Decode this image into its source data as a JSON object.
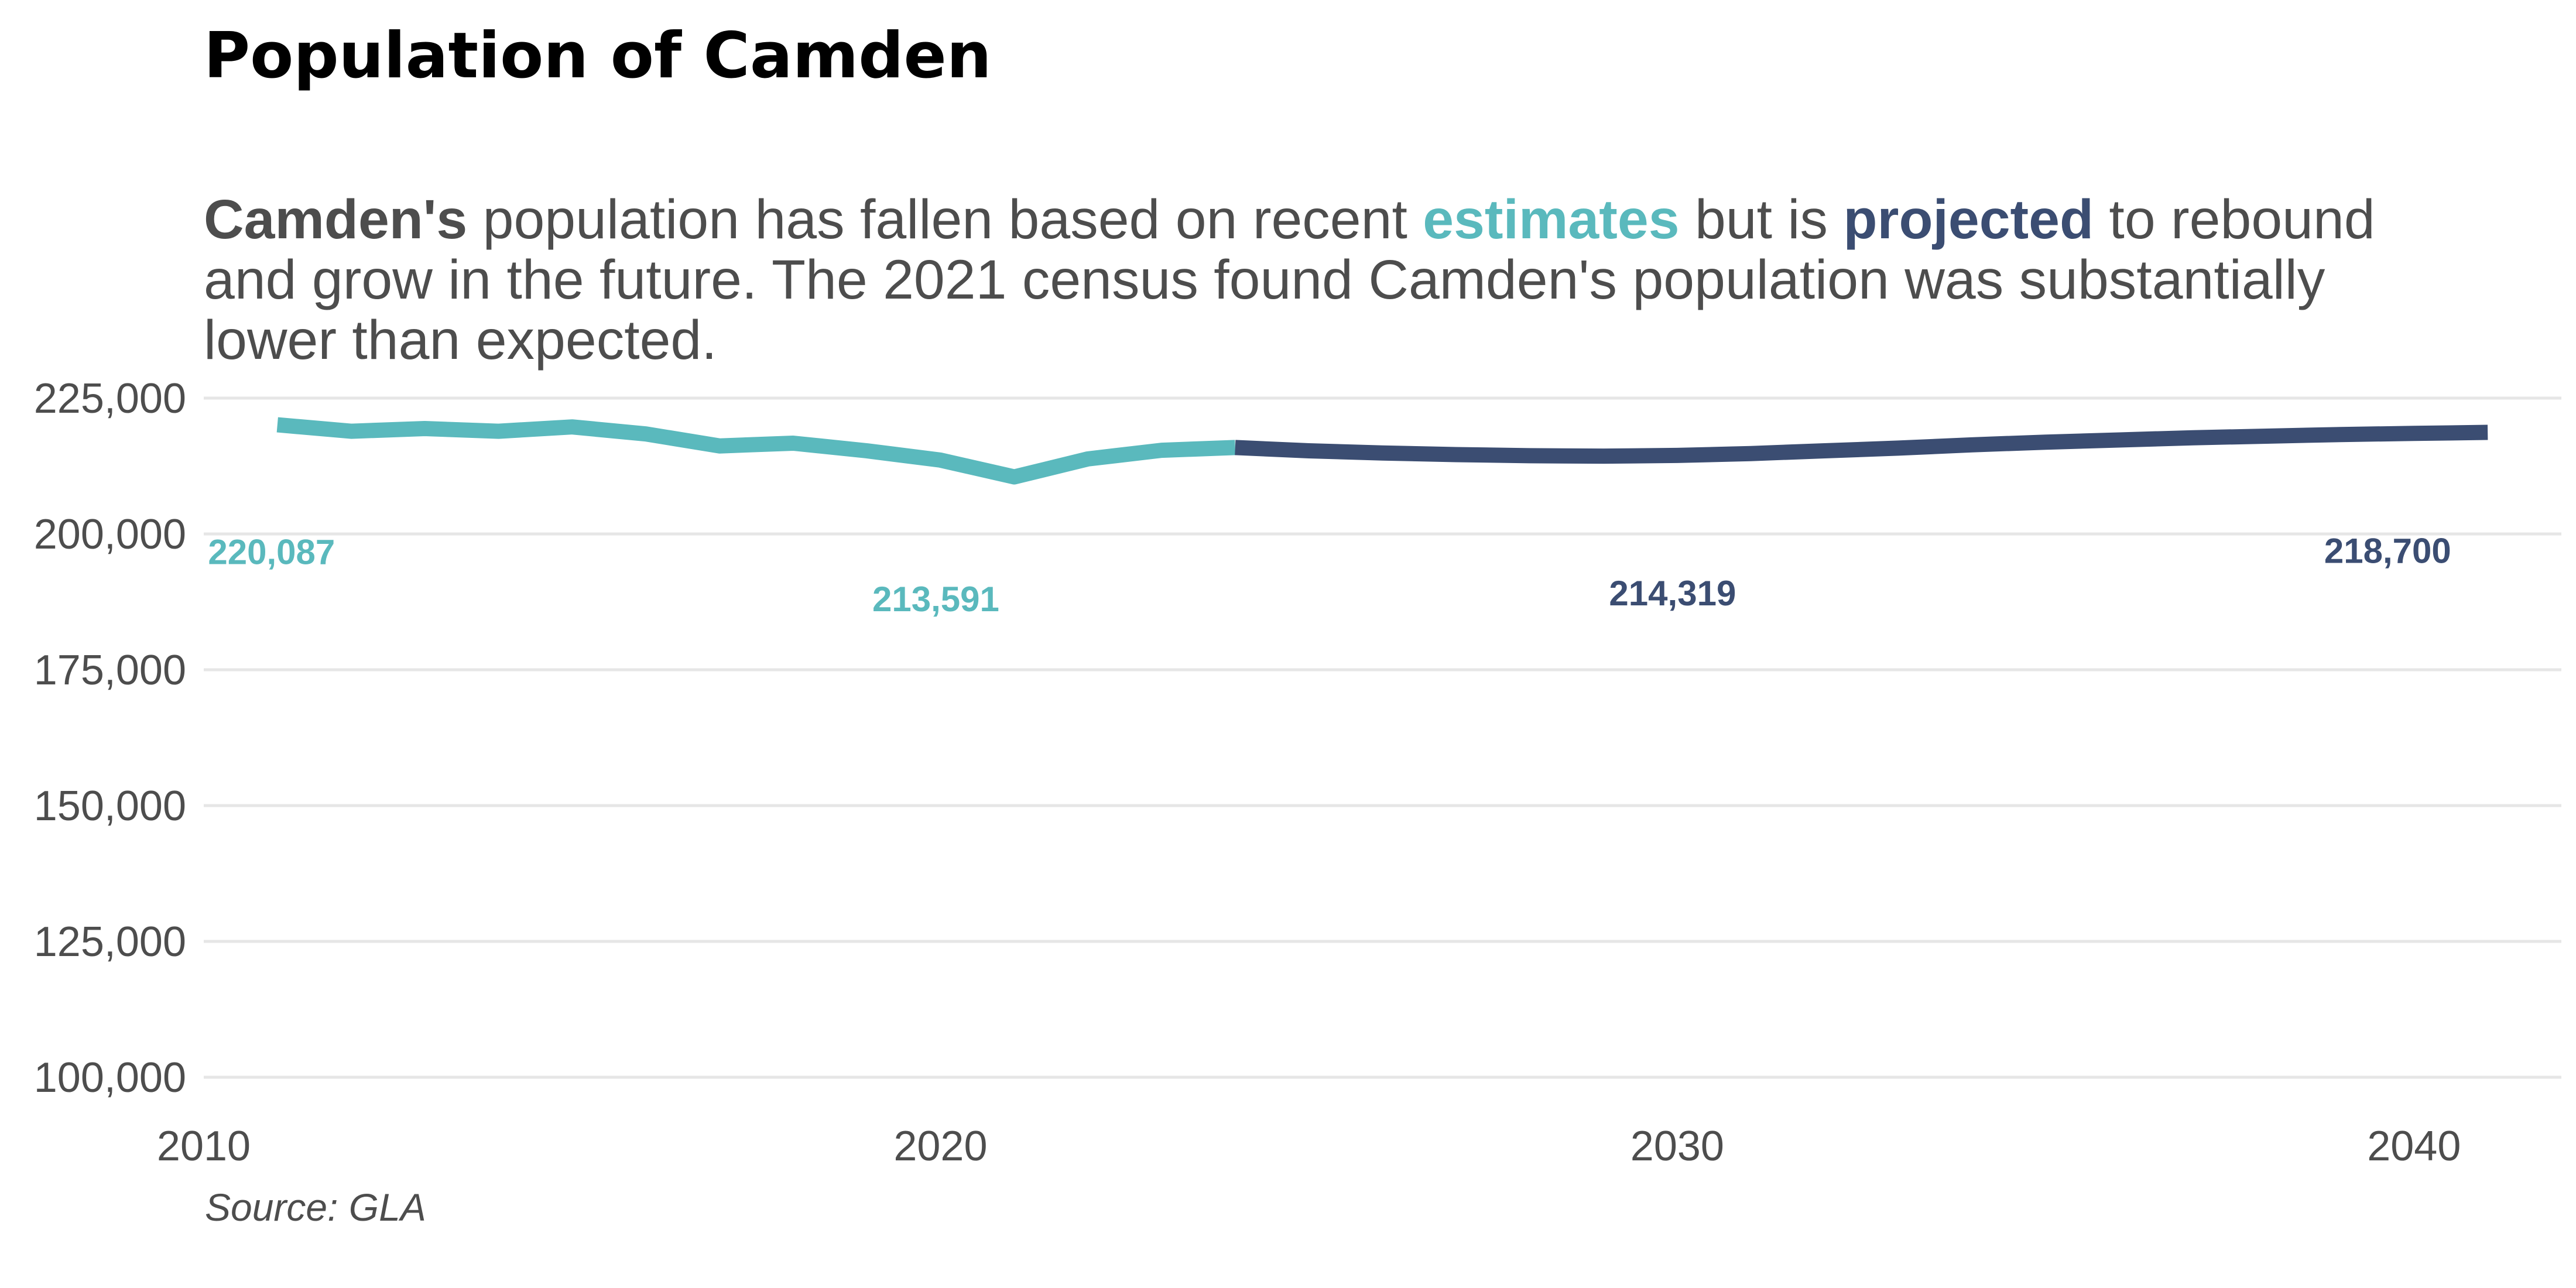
{
  "chart_data": {
    "type": "line",
    "title": "Population of Camden",
    "subtitle": {
      "line1": [
        {
          "text": "Camden's",
          "style": "bold"
        },
        {
          "text": " population has fallen based on recent ",
          "style": "normal"
        },
        {
          "text": "estimates",
          "style": "estimates"
        },
        {
          "text": " but is ",
          "style": "normal"
        },
        {
          "text": "projected",
          "style": "projected"
        },
        {
          "text": " to rebound",
          "style": "normal"
        }
      ],
      "line2": "and grow in the future. The 2021 census found Camden's population was substantially",
      "line3": "lower than expected."
    },
    "caption": "Source: GLA",
    "xlabel": "",
    "ylabel": "",
    "xlim": [
      2010,
      2042
    ],
    "ylim": [
      100000,
      225000
    ],
    "x_ticks": [
      2010,
      2020,
      2030,
      2040
    ],
    "y_ticks": [
      100000,
      125000,
      150000,
      175000,
      200000,
      225000
    ],
    "y_tick_labels": [
      "100,000",
      "125,000",
      "150,000",
      "175,000",
      "200,000",
      "225,000"
    ],
    "grid": "horizontal",
    "colors": {
      "estimates": "#5ab9bd",
      "projected": "#3b4d72",
      "text": "#4d4d4d",
      "grid": "#e6e6e6"
    },
    "series": [
      {
        "key": "estimates",
        "x": [
          2011,
          2012,
          2013,
          2014,
          2015,
          2016,
          2017,
          2018,
          2019,
          2020,
          2021,
          2022,
          2023,
          2024
        ],
        "y": [
          220087,
          218900,
          219400,
          218900,
          219700,
          218400,
          216200,
          216700,
          215300,
          213591,
          210500,
          213800,
          215400,
          215900
        ]
      },
      {
        "key": "projected",
        "x": [
          2024,
          2025,
          2026,
          2027,
          2028,
          2029,
          2030,
          2031,
          2032,
          2033,
          2034,
          2035,
          2036,
          2037,
          2038,
          2039,
          2040,
          2041
        ],
        "y": [
          215900,
          215300,
          214900,
          214600,
          214400,
          214319,
          214450,
          214800,
          215300,
          215800,
          216400,
          216900,
          217300,
          217700,
          218000,
          218300,
          218500,
          218700
        ]
      }
    ],
    "annotations": [
      {
        "x": 2011,
        "value": 220087,
        "text": "220,087",
        "series": "estimates"
      },
      {
        "x": 2020,
        "value": 213591,
        "text": "213,591",
        "series": "estimates"
      },
      {
        "x": 2030,
        "value": 214319,
        "text": "214,319",
        "series": "projected"
      },
      {
        "x": 2040,
        "value": 218700,
        "text": "218,700",
        "series": "projected"
      }
    ]
  }
}
